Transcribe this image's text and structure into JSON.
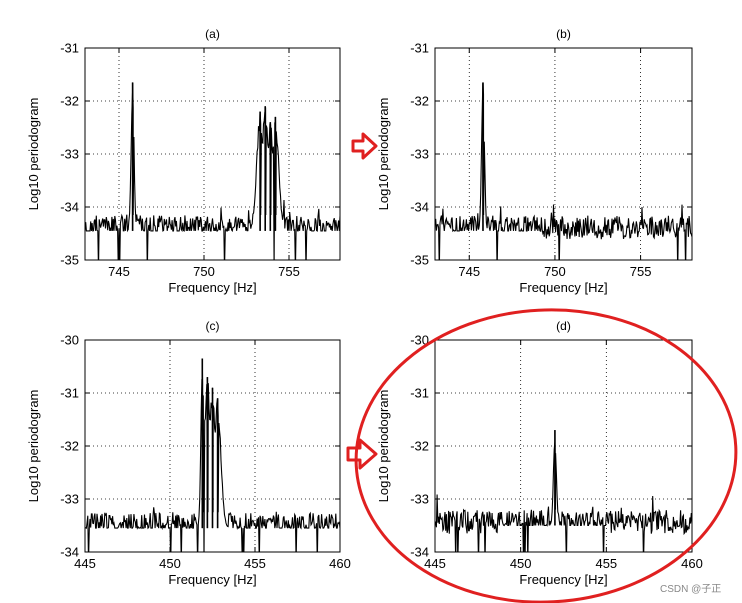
{
  "chart_data": [
    {
      "type": "line",
      "panel": "a",
      "title": "(a)",
      "xlabel": "Frequency [Hz]",
      "ylabel": "Log10 periodogram",
      "xlim": [
        743,
        758
      ],
      "ylim": [
        -35,
        -31
      ],
      "xticks": [
        745,
        750,
        755
      ],
      "yticks": [
        -35,
        -34,
        -33,
        -32,
        -31
      ],
      "grid": true,
      "peaks": [
        {
          "x": 745.8,
          "y": -31.65
        },
        {
          "x": 753.3,
          "y": -32.2
        },
        {
          "x": 753.6,
          "y": -32.1
        },
        {
          "x": 753.9,
          "y": -32.4
        },
        {
          "x": 754.2,
          "y": -32.3
        }
      ],
      "noise_floor": -34.45
    },
    {
      "type": "line",
      "panel": "b",
      "title": "(b)",
      "xlabel": "Frequency [Hz]",
      "ylabel": "Log10 periodogram",
      "xlim": [
        743,
        758
      ],
      "ylim": [
        -35,
        -31
      ],
      "xticks": [
        745,
        750,
        755
      ],
      "yticks": [
        -35,
        -34,
        -33,
        -32,
        -31
      ],
      "grid": true,
      "peaks": [
        {
          "x": 745.8,
          "y": -31.65
        }
      ],
      "noise_floor": -34.45
    },
    {
      "type": "line",
      "panel": "c",
      "title": "(c)",
      "xlabel": "Frequency [Hz]",
      "ylabel": "Log10 periodogram",
      "xlim": [
        445,
        460
      ],
      "ylim": [
        -34,
        -30
      ],
      "xticks": [
        445,
        450,
        455,
        460
      ],
      "yticks": [
        -34,
        -33,
        -32,
        -31,
        -30
      ],
      "grid": true,
      "peaks": [
        {
          "x": 451.9,
          "y": -30.35
        },
        {
          "x": 452.2,
          "y": -30.7
        },
        {
          "x": 452.5,
          "y": -30.9
        },
        {
          "x": 452.8,
          "y": -31.1
        }
      ],
      "noise_floor": -33.55
    },
    {
      "type": "line",
      "panel": "d",
      "title": "(d)",
      "xlabel": "Frequency [Hz]",
      "ylabel": "Log10 periodogram",
      "xlim": [
        445,
        460
      ],
      "ylim": [
        -34,
        -30
      ],
      "xticks": [
        445,
        450,
        455,
        460
      ],
      "yticks": [
        -34,
        -33,
        -32,
        -31,
        -30
      ],
      "grid": true,
      "peaks": [
        {
          "x": 452.0,
          "y": -31.7
        }
      ],
      "noise_floor": -33.5
    }
  ],
  "annotations": {
    "arrow_color": "#e02020",
    "ellipse_color": "#e02020",
    "arrow_icon": "right-arrow-icon"
  },
  "watermark": "CSDN @子正"
}
